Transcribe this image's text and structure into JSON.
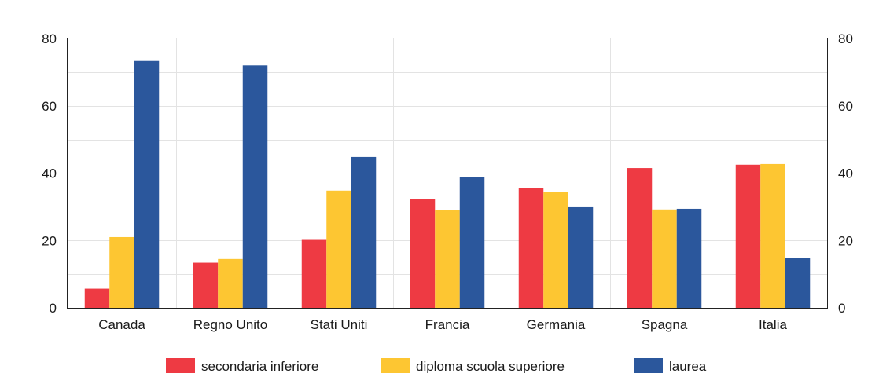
{
  "chart_data": {
    "type": "bar",
    "categories": [
      "Canada",
      "Regno Unito",
      "Stati Uniti",
      "Francia",
      "Germania",
      "Spagna",
      "Italia"
    ],
    "series": [
      {
        "name": "secondaria inferiore",
        "color": "#ee3a43",
        "values": [
          5.7,
          13.4,
          20.4,
          32.2,
          35.5,
          41.5,
          42.5
        ]
      },
      {
        "name": "diploma scuola superiore",
        "color": "#fdc632",
        "values": [
          21.0,
          14.5,
          34.8,
          29.0,
          34.4,
          29.2,
          42.7
        ]
      },
      {
        "name": "laurea",
        "color": "#2b579c",
        "values": [
          73.3,
          72.0,
          44.8,
          38.8,
          30.1,
          29.4,
          14.8
        ]
      }
    ],
    "ylim": [
      0,
      80
    ],
    "yticks": [
      "0",
      "20",
      "40",
      "60",
      "80"
    ],
    "grid": true,
    "legend_position": "bottom",
    "secondary_y_axis": true
  }
}
